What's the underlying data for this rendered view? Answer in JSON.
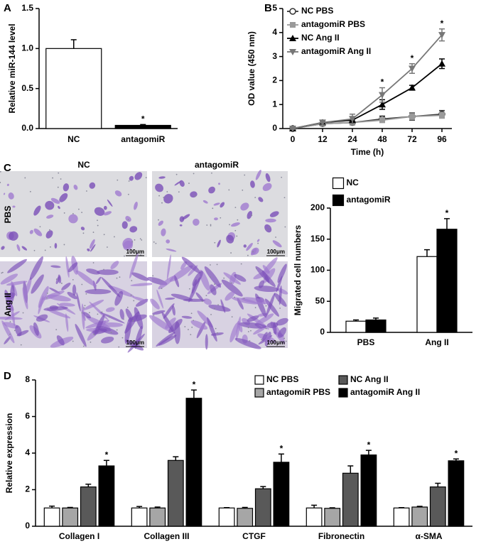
{
  "chart_data": [
    {
      "type": "bar",
      "panel": "A",
      "ylabel": "Relative miR-144 level",
      "categories": [
        "NC",
        "antagomiR"
      ],
      "values": [
        1.0,
        0.04
      ],
      "errors": [
        0.11,
        0.01
      ],
      "annotations": [
        null,
        "*"
      ],
      "color": "#ffffff",
      "ylim": [
        0,
        1.5
      ],
      "yticks": [
        {
          "value": 0,
          "label": "0.0"
        },
        {
          "value": 0.5,
          "label": "0.5"
        },
        {
          "value": 1,
          "label": "1.0"
        },
        {
          "value": 1.5,
          "label": "1.5"
        }
      ]
    },
    {
      "type": "line",
      "panel": "B",
      "ylabel": "OD value (450 nm)",
      "xlabel": "Time (h)",
      "categories": [
        "0",
        "12",
        "24",
        "48",
        "72",
        "96"
      ],
      "series": [
        {
          "name": "NC PBS",
          "color": "#333333",
          "marker": "circle-open",
          "values": [
            0,
            0.2,
            0.25,
            0.4,
            0.5,
            0.6
          ],
          "errors": [
            0.03,
            0.05,
            0.1,
            0.12,
            0.15,
            0.15
          ]
        },
        {
          "name": "antagomiR PBS",
          "color": "#9a9a9a",
          "marker": "square",
          "values": [
            0,
            0.2,
            0.25,
            0.35,
            0.5,
            0.55
          ],
          "errors": [
            0.03,
            0.05,
            0.08,
            0.1,
            0.12,
            0.12
          ]
        },
        {
          "name": "NC Ang II",
          "color": "#000000",
          "marker": "triangle",
          "values": [
            0,
            0.25,
            0.35,
            1.0,
            1.7,
            2.7
          ],
          "errors": [
            0.03,
            0.1,
            0.15,
            0.2,
            0.1,
            0.2
          ]
        },
        {
          "name": "antagomiR Ang II",
          "color": "#777777",
          "marker": "triangle-down",
          "values": [
            0,
            0.25,
            0.4,
            1.4,
            2.5,
            3.9
          ],
          "errors": [
            0.03,
            0.1,
            0.2,
            0.3,
            0.2,
            0.25
          ],
          "annotations": [
            null,
            null,
            null,
            "*",
            "*",
            "*"
          ]
        }
      ],
      "ylim": [
        0,
        5
      ],
      "yticks": [
        0,
        1,
        2,
        3,
        4,
        5
      ]
    },
    {
      "type": "grouped-bar",
      "panel": "C",
      "ylabel": "Migrated cell numbers",
      "categories": [
        "PBS",
        "Ang II"
      ],
      "series": [
        {
          "name": "NC",
          "color": "#ffffff",
          "values": [
            18,
            122
          ],
          "errors": [
            2,
            11
          ]
        },
        {
          "name": "antagomiR",
          "color": "#000000",
          "values": [
            20,
            166
          ],
          "errors": [
            3,
            17
          ],
          "annotations": [
            null,
            "*"
          ]
        }
      ],
      "ylim": [
        0,
        200
      ],
      "yticks": [
        0,
        50,
        100,
        150,
        200
      ]
    },
    {
      "type": "grouped-bar",
      "panel": "D",
      "ylabel": "Relative expression",
      "categories": [
        "Collagen I",
        "Collagen III",
        "CTGF",
        "Fibronectin",
        "α-SMA"
      ],
      "series": [
        {
          "name": "NC PBS",
          "color": "#ffffff",
          "values": [
            1.0,
            1.0,
            1.0,
            1.0,
            1.0
          ],
          "errors": [
            0.1,
            0.08,
            0.02,
            0.15,
            0.02
          ]
        },
        {
          "name": "antagomiR PBS",
          "color": "#a6a6a6",
          "values": [
            1.0,
            1.0,
            0.98,
            0.98,
            1.05
          ],
          "errors": [
            0.03,
            0.05,
            0.05,
            0.03,
            0.04
          ]
        },
        {
          "name": "NC Ang II",
          "color": "#595959",
          "values": [
            2.15,
            3.6,
            2.05,
            2.9,
            2.15
          ],
          "errors": [
            0.15,
            0.2,
            0.12,
            0.4,
            0.2
          ]
        },
        {
          "name": "antagomiR Ang II",
          "color": "#000000",
          "values": [
            3.3,
            7.0,
            3.5,
            3.9,
            3.58
          ],
          "errors": [
            0.3,
            0.45,
            0.45,
            0.25,
            0.1
          ],
          "annotations": [
            "*",
            "*",
            "*",
            "*",
            "*"
          ]
        }
      ],
      "ylim": [
        0,
        8
      ],
      "yticks": [
        0,
        2,
        4,
        6,
        8
      ]
    }
  ],
  "micrographs": {
    "columns": [
      "NC",
      "antagomiR"
    ],
    "rows": [
      "PBS",
      "Ang II"
    ],
    "scale_bar": "100μm"
  }
}
